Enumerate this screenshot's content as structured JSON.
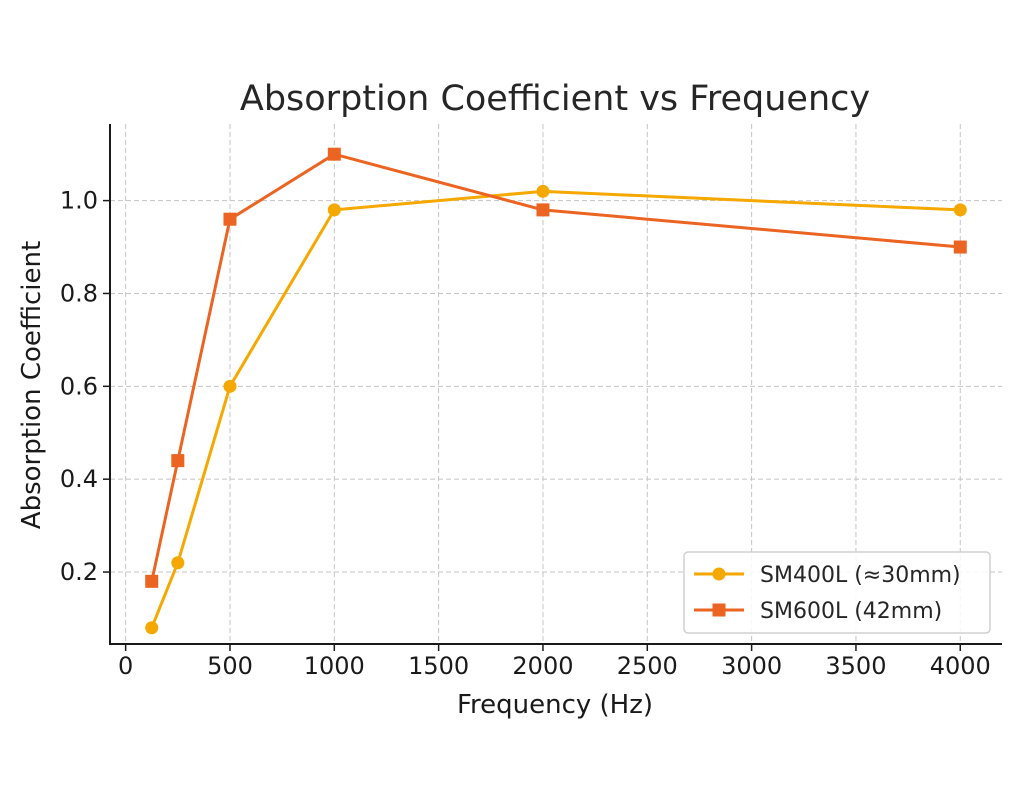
{
  "chart_data": {
    "type": "line",
    "title": "Absorption Coefficient vs Frequency",
    "xlabel": "Frequency (Hz)",
    "ylabel": "Absorption Coefficient",
    "xlim": [
      -75,
      4200
    ],
    "ylim": [
      0.045,
      1.165
    ],
    "xticks": [
      0,
      500,
      1000,
      1500,
      2000,
      2500,
      3000,
      3500,
      4000
    ],
    "yticks": [
      0.2,
      0.4,
      0.6,
      0.8,
      1.0
    ],
    "xtick_labels": [
      "0",
      "500",
      "1000",
      "1500",
      "2000",
      "2500",
      "3000",
      "3500",
      "4000"
    ],
    "ytick_labels": [
      "0.2",
      "0.4",
      "0.6",
      "0.8",
      "1.0"
    ],
    "grid": true,
    "legend_position": "lower-right",
    "x": [
      125,
      250,
      500,
      1000,
      2000,
      4000
    ],
    "series": [
      {
        "name": "SM400L (≈30mm)",
        "values": [
          0.08,
          0.22,
          0.6,
          0.98,
          1.02,
          0.98
        ],
        "color": "#f5a800",
        "marker": "circle"
      },
      {
        "name": "SM600L (42mm)",
        "values": [
          0.18,
          0.44,
          0.96,
          1.1,
          0.98,
          0.9
        ],
        "color": "#eb6421",
        "marker": "square"
      }
    ]
  }
}
